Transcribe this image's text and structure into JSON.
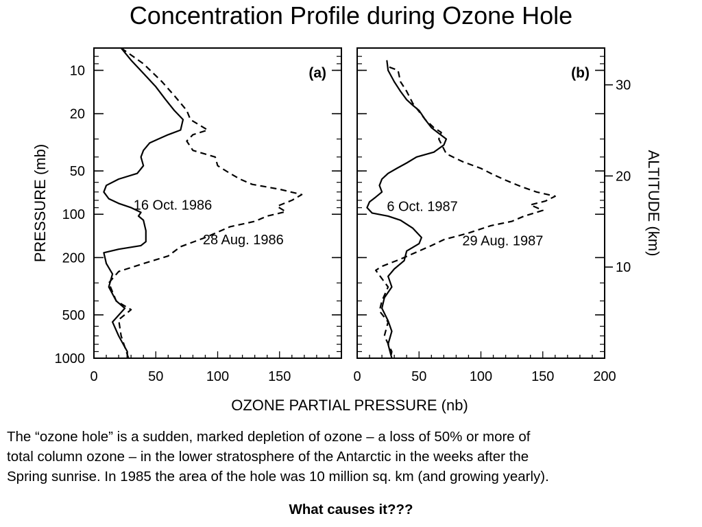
{
  "title": "Concentration Profile during Ozone Hole",
  "caption": {
    "lines": [
      "The “ozone hole” is a sudden, marked depletion of ozone – a loss of 50% or more of",
      "total column ozone – in the lower stratosphere of the Antarctic in the weeks after the",
      "Spring sunrise. In 1985 the area of the hole was 10 million sq. km (and growing yearly)."
    ],
    "question": "What causes it???"
  },
  "chart_data": {
    "type": "line",
    "xlabel": "OZONE PARTIAL PRESSURE (nb)",
    "ylabel": "PRESSURE (mb)",
    "y2label": "ALTITUDE (km)",
    "y_scale": "log",
    "ylim": [
      1000,
      7
    ],
    "y_ticks": [
      10,
      20,
      50,
      100,
      200,
      500,
      1000
    ],
    "y2_ticks": [
      10,
      20,
      30
    ],
    "panels": [
      {
        "label": "(a)",
        "xlim": [
          0,
          200
        ],
        "x_ticks": [
          0,
          50,
          100,
          150
        ],
        "series": [
          {
            "name": "16 Oct. 1986",
            "style": "solid",
            "points": [
              [
                22,
                7
              ],
              [
                30,
                8.5
              ],
              [
                40,
                10.5
              ],
              [
                50,
                13
              ],
              [
                58,
                16
              ],
              [
                65,
                19
              ],
              [
                72,
                22
              ],
              [
                70,
                26
              ],
              [
                60,
                28
              ],
              [
                52,
                30
              ],
              [
                45,
                32
              ],
              [
                40,
                36
              ],
              [
                38,
                40
              ],
              [
                40,
                46
              ],
              [
                35,
                52
              ],
              [
                20,
                57
              ],
              [
                10,
                63
              ],
              [
                8,
                70
              ],
              [
                12,
                78
              ],
              [
                20,
                84
              ],
              [
                30,
                90
              ],
              [
                38,
                97
              ],
              [
                36,
                103
              ],
              [
                40,
                110
              ],
              [
                42,
                130
              ],
              [
                42,
                155
              ],
              [
                38,
                165
              ],
              [
                20,
                175
              ],
              [
                8,
                185
              ],
              [
                10,
                220
              ],
              [
                15,
                260
              ],
              [
                12,
                320
              ],
              [
                18,
                400
              ],
              [
                25,
                450
              ],
              [
                15,
                560
              ],
              [
                20,
                700
              ],
              [
                27,
                900
              ],
              [
                27,
                1000
              ]
            ]
          },
          {
            "name": "28 Aug. 1986",
            "style": "dashed",
            "points": [
              [
                22,
                7
              ],
              [
                40,
                9
              ],
              [
                55,
                12
              ],
              [
                65,
                15
              ],
              [
                75,
                19
              ],
              [
                78,
                22
              ],
              [
                92,
                26
              ],
              [
                80,
                28
              ],
              [
                75,
                31
              ],
              [
                80,
                36
              ],
              [
                98,
                40
              ],
              [
                100,
                46
              ],
              [
                110,
                52
              ],
              [
                118,
                57
              ],
              [
                128,
                62
              ],
              [
                150,
                67
              ],
              [
                168,
                73
              ],
              [
                160,
                80
              ],
              [
                148,
                88
              ],
              [
                155,
                96
              ],
              [
                140,
                103
              ],
              [
                130,
                112
              ],
              [
                110,
                122
              ],
              [
                90,
                145
              ],
              [
                70,
                168
              ],
              [
                60,
                195
              ],
              [
                40,
                220
              ],
              [
                20,
                250
              ],
              [
                12,
                300
              ],
              [
                18,
                400
              ],
              [
                30,
                460
              ],
              [
                20,
                540
              ],
              [
                22,
                700
              ],
              [
                28,
                1000
              ]
            ]
          }
        ]
      },
      {
        "label": "(b)",
        "xlim": [
          0,
          200
        ],
        "x_ticks": [
          0,
          50,
          100,
          150,
          200
        ],
        "series": [
          {
            "name": "6 Oct. 1987",
            "style": "solid",
            "points": [
              [
                24,
                8.5
              ],
              [
                25,
                10
              ],
              [
                30,
                12
              ],
              [
                35,
                14
              ],
              [
                40,
                16
              ],
              [
                45,
                17.5
              ],
              [
                50,
                19
              ],
              [
                55,
                22
              ],
              [
                60,
                25
              ],
              [
                65,
                27
              ],
              [
                72,
                30
              ],
              [
                70,
                33
              ],
              [
                62,
                37
              ],
              [
                48,
                40
              ],
              [
                40,
                44
              ],
              [
                32,
                48
              ],
              [
                25,
                52
              ],
              [
                20,
                57
              ],
              [
                18,
                63
              ],
              [
                20,
                70
              ],
              [
                15,
                76
              ],
              [
                10,
                82
              ],
              [
                8,
                90
              ],
              [
                12,
                98
              ],
              [
                25,
                103
              ],
              [
                35,
                110
              ],
              [
                45,
                125
              ],
              [
                52,
                145
              ],
              [
                50,
                160
              ],
              [
                40,
                180
              ],
              [
                38,
                210
              ],
              [
                30,
                240
              ],
              [
                25,
                270
              ],
              [
                28,
                320
              ],
              [
                22,
                380
              ],
              [
                20,
                450
              ],
              [
                25,
                550
              ],
              [
                28,
                650
              ],
              [
                25,
                800
              ],
              [
                28,
                1000
              ]
            ]
          },
          {
            "name": "29 Aug. 1987",
            "style": "dashed",
            "points": [
              [
                26,
                9.5
              ],
              [
                33,
                10
              ],
              [
                35,
                12
              ],
              [
                40,
                14
              ],
              [
                45,
                17
              ],
              [
                55,
                22
              ],
              [
                62,
                25
              ],
              [
                68,
                27
              ],
              [
                66,
                30
              ],
              [
                72,
                38
              ],
              [
                85,
                43
              ],
              [
                100,
                48
              ],
              [
                110,
                53
              ],
              [
                120,
                58
              ],
              [
                132,
                64
              ],
              [
                145,
                70
              ],
              [
                160,
                75
              ],
              [
                152,
                81
              ],
              [
                140,
                86
              ],
              [
                150,
                94
              ],
              [
                135,
                103
              ],
              [
                125,
                112
              ],
              [
                108,
                120
              ],
              [
                90,
                135
              ],
              [
                70,
                150
              ],
              [
                60,
                165
              ],
              [
                50,
                180
              ],
              [
                35,
                205
              ],
              [
                20,
                230
              ],
              [
                15,
                245
              ],
              [
                25,
                320
              ],
              [
                20,
                400
              ],
              [
                18,
                470
              ],
              [
                25,
                560
              ],
              [
                22,
                700
              ],
              [
                28,
                900
              ],
              [
                27,
                1000
              ]
            ]
          }
        ]
      }
    ],
    "annotations": [
      {
        "panel": 0,
        "text": "16 Oct. 1986",
        "x": 32,
        "y": 86
      },
      {
        "panel": 0,
        "text": "28 Aug. 1986",
        "x": 88,
        "y": 150
      },
      {
        "panel": 1,
        "text": "6 Oct. 1987",
        "x": 24,
        "y": 88
      },
      {
        "panel": 1,
        "text": "29 Aug. 1987",
        "x": 85,
        "y": 152
      }
    ]
  }
}
